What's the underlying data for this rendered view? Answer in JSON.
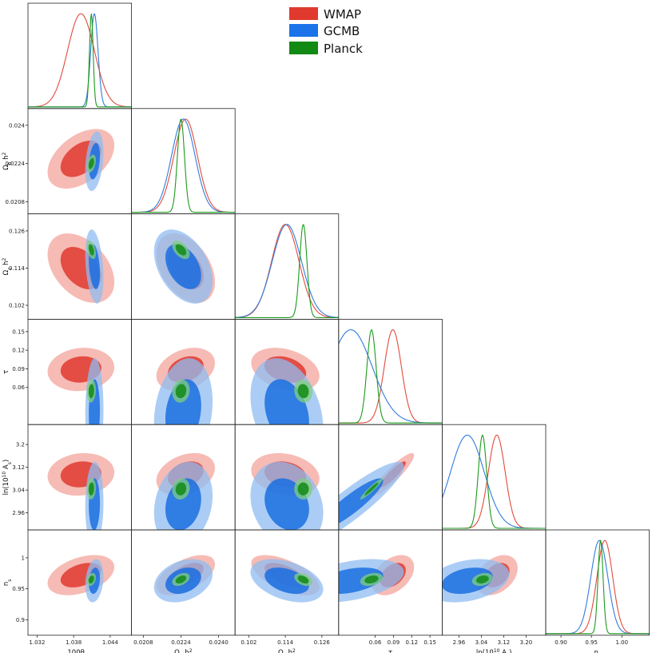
{
  "chart_data": {
    "type": "triangle",
    "title": "",
    "legend": {
      "placement": "top-center",
      "entries": [
        {
          "name": "WMAP",
          "color": "#e03a2f"
        },
        {
          "name": "GCMB",
          "color": "#1a73e8"
        },
        {
          "name": "Planck",
          "color": "#138a13"
        }
      ]
    },
    "colors": {
      "WMAP": {
        "line": "#e24a3b",
        "inner": "#e03a2f",
        "outer": "#f3a49c"
      },
      "GCMB": {
        "line": "#2f7bdc",
        "inner": "#1a6fe0",
        "outer": "#8fbcf2"
      },
      "Planck": {
        "line": "#1b9a1b",
        "inner": "#138a13",
        "outer": "#7fcf7f"
      }
    },
    "parameters": [
      {
        "name": "theta",
        "label": "100θ_MC",
        "xlabel": "100θ$_{MC}$",
        "xrange": [
          1.0305,
          1.0475
        ],
        "xticks": [
          "1.032",
          "1.038",
          "1.044"
        ],
        "xtick_values": [
          1.032,
          1.038,
          1.044
        ]
      },
      {
        "name": "ombh2",
        "label": "Ω_b h²",
        "xlabel": "Ω_b h^2",
        "xrange": [
          0.0203,
          0.0247
        ],
        "xticks": [
          "0.0208",
          "0.0224",
          "0.0240"
        ],
        "xtick_values": [
          0.0208,
          0.0224,
          0.024
        ]
      },
      {
        "name": "omch2",
        "label": "Ω_c h²",
        "xlabel": "Ω_c h^2",
        "xrange": [
          0.0975,
          0.1315
        ],
        "xticks": [
          "0.102",
          "0.114",
          "0.126"
        ],
        "xtick_values": [
          0.102,
          0.114,
          0.126
        ]
      },
      {
        "name": "tau",
        "label": "τ",
        "xlabel": "τ",
        "xrange": [
          0.0,
          0.17
        ],
        "xticks": [
          "0.06",
          "0.09",
          "0.12",
          "0.15"
        ],
        "xtick_values": [
          0.06,
          0.09,
          0.12,
          0.15
        ]
      },
      {
        "name": "logA",
        "label": "ln(10¹⁰A_s)",
        "xlabel": "ln(10^10 A_s)",
        "xrange": [
          2.9,
          3.27
        ],
        "xticks": [
          "2.96",
          "3.04",
          "3.12",
          "3.20"
        ],
        "xtick_values": [
          2.96,
          3.04,
          3.12,
          3.2
        ]
      },
      {
        "name": "ns",
        "label": "n_s",
        "xlabel": "n_s",
        "xrange": [
          0.875,
          1.045
        ],
        "xticks": [
          "0.90",
          "0.95",
          "1.00"
        ],
        "xtick_values": [
          0.9,
          0.95,
          1.0
        ]
      }
    ],
    "y_axes": [
      {
        "row": 1,
        "label": "Ω_b h^2",
        "yrange": [
          0.0203,
          0.0247
        ],
        "yticks": [
          "0.0208",
          "0.0224",
          "0.024"
        ],
        "ytick_values": [
          0.0208,
          0.0224,
          0.024
        ]
      },
      {
        "row": 2,
        "label": "Ω_c h^2",
        "yrange": [
          0.0975,
          0.1315
        ],
        "yticks": [
          "0.102",
          "0.114",
          "0.126"
        ],
        "ytick_values": [
          0.102,
          0.114,
          0.126
        ]
      },
      {
        "row": 3,
        "label": "τ",
        "yrange": [
          0.0,
          0.17
        ],
        "yticks": [
          "0.06",
          "0.09",
          "0.12",
          "0.15"
        ],
        "ytick_values": [
          0.06,
          0.09,
          0.12,
          0.15
        ]
      },
      {
        "row": 4,
        "label": "ln(10^10 A_s)",
        "yrange": [
          2.9,
          3.27
        ],
        "yticks": [
          "2.96",
          "3.04",
          "3.12",
          "3.2"
        ],
        "ytick_values": [
          2.96,
          3.04,
          3.12,
          3.2
        ]
      },
      {
        "row": 5,
        "label": "n_s",
        "yrange": [
          0.875,
          1.045
        ],
        "yticks": [
          "0.9",
          "0.95",
          "1"
        ],
        "ytick_values": [
          0.9,
          0.95,
          1.0
        ]
      }
    ],
    "series": [
      {
        "name": "WMAP",
        "mean": [
          1.0392,
          0.0226,
          0.114,
          0.089,
          3.095,
          0.972
        ],
        "sigma": [
          0.0022,
          0.0005,
          0.0045,
          0.014,
          0.03,
          0.013
        ],
        "corr": [
          [
            1,
            0.45,
            -0.4,
            0.1,
            0.1,
            0.4
          ],
          [
            0.45,
            1,
            -0.4,
            0.3,
            0.3,
            0.55
          ],
          [
            -0.4,
            -0.4,
            1,
            -0.3,
            -0.2,
            -0.6
          ],
          [
            0.1,
            0.3,
            -0.3,
            1,
            0.9,
            0.4
          ],
          [
            0.1,
            0.3,
            -0.2,
            0.9,
            1,
            0.35
          ],
          [
            0.4,
            0.55,
            -0.6,
            0.4,
            0.35,
            1
          ]
        ]
      },
      {
        "name": "GCMB",
        "mean": [
          1.0414,
          0.0225,
          0.1145,
          0.02,
          2.99,
          0.963
        ],
        "sigma": [
          0.0006,
          0.0005,
          0.0048,
          0.035,
          0.06,
          0.014
        ],
        "corr": [
          [
            1,
            0.3,
            -0.3,
            0.05,
            0.05,
            0.2
          ],
          [
            0.3,
            1,
            -0.4,
            0.2,
            0.2,
            0.3
          ],
          [
            -0.3,
            -0.4,
            1,
            -0.3,
            -0.2,
            -0.4
          ],
          [
            0.05,
            0.2,
            -0.3,
            1,
            0.9,
            0.4
          ],
          [
            0.05,
            0.2,
            -0.2,
            0.9,
            1,
            0.3
          ],
          [
            0.2,
            0.3,
            -0.4,
            0.4,
            0.3,
            1
          ]
        ]
      },
      {
        "name": "Planck",
        "mean": [
          1.0409,
          0.0224,
          0.1199,
          0.054,
          3.044,
          0.965
        ],
        "sigma": [
          0.0003,
          0.00015,
          0.0012,
          0.0075,
          0.015,
          0.0042
        ],
        "corr": [
          [
            1,
            0.4,
            -0.4,
            0.1,
            0.1,
            0.3
          ],
          [
            0.4,
            1,
            -0.5,
            0.1,
            0.1,
            0.4
          ],
          [
            -0.4,
            -0.5,
            1,
            -0.1,
            0.0,
            -0.4
          ],
          [
            0.1,
            0.1,
            -0.1,
            1,
            0.95,
            0.3
          ],
          [
            0.1,
            0.1,
            0.0,
            0.95,
            1,
            0.25
          ],
          [
            0.3,
            0.4,
            -0.4,
            0.3,
            0.25,
            1
          ]
        ]
      }
    ]
  }
}
